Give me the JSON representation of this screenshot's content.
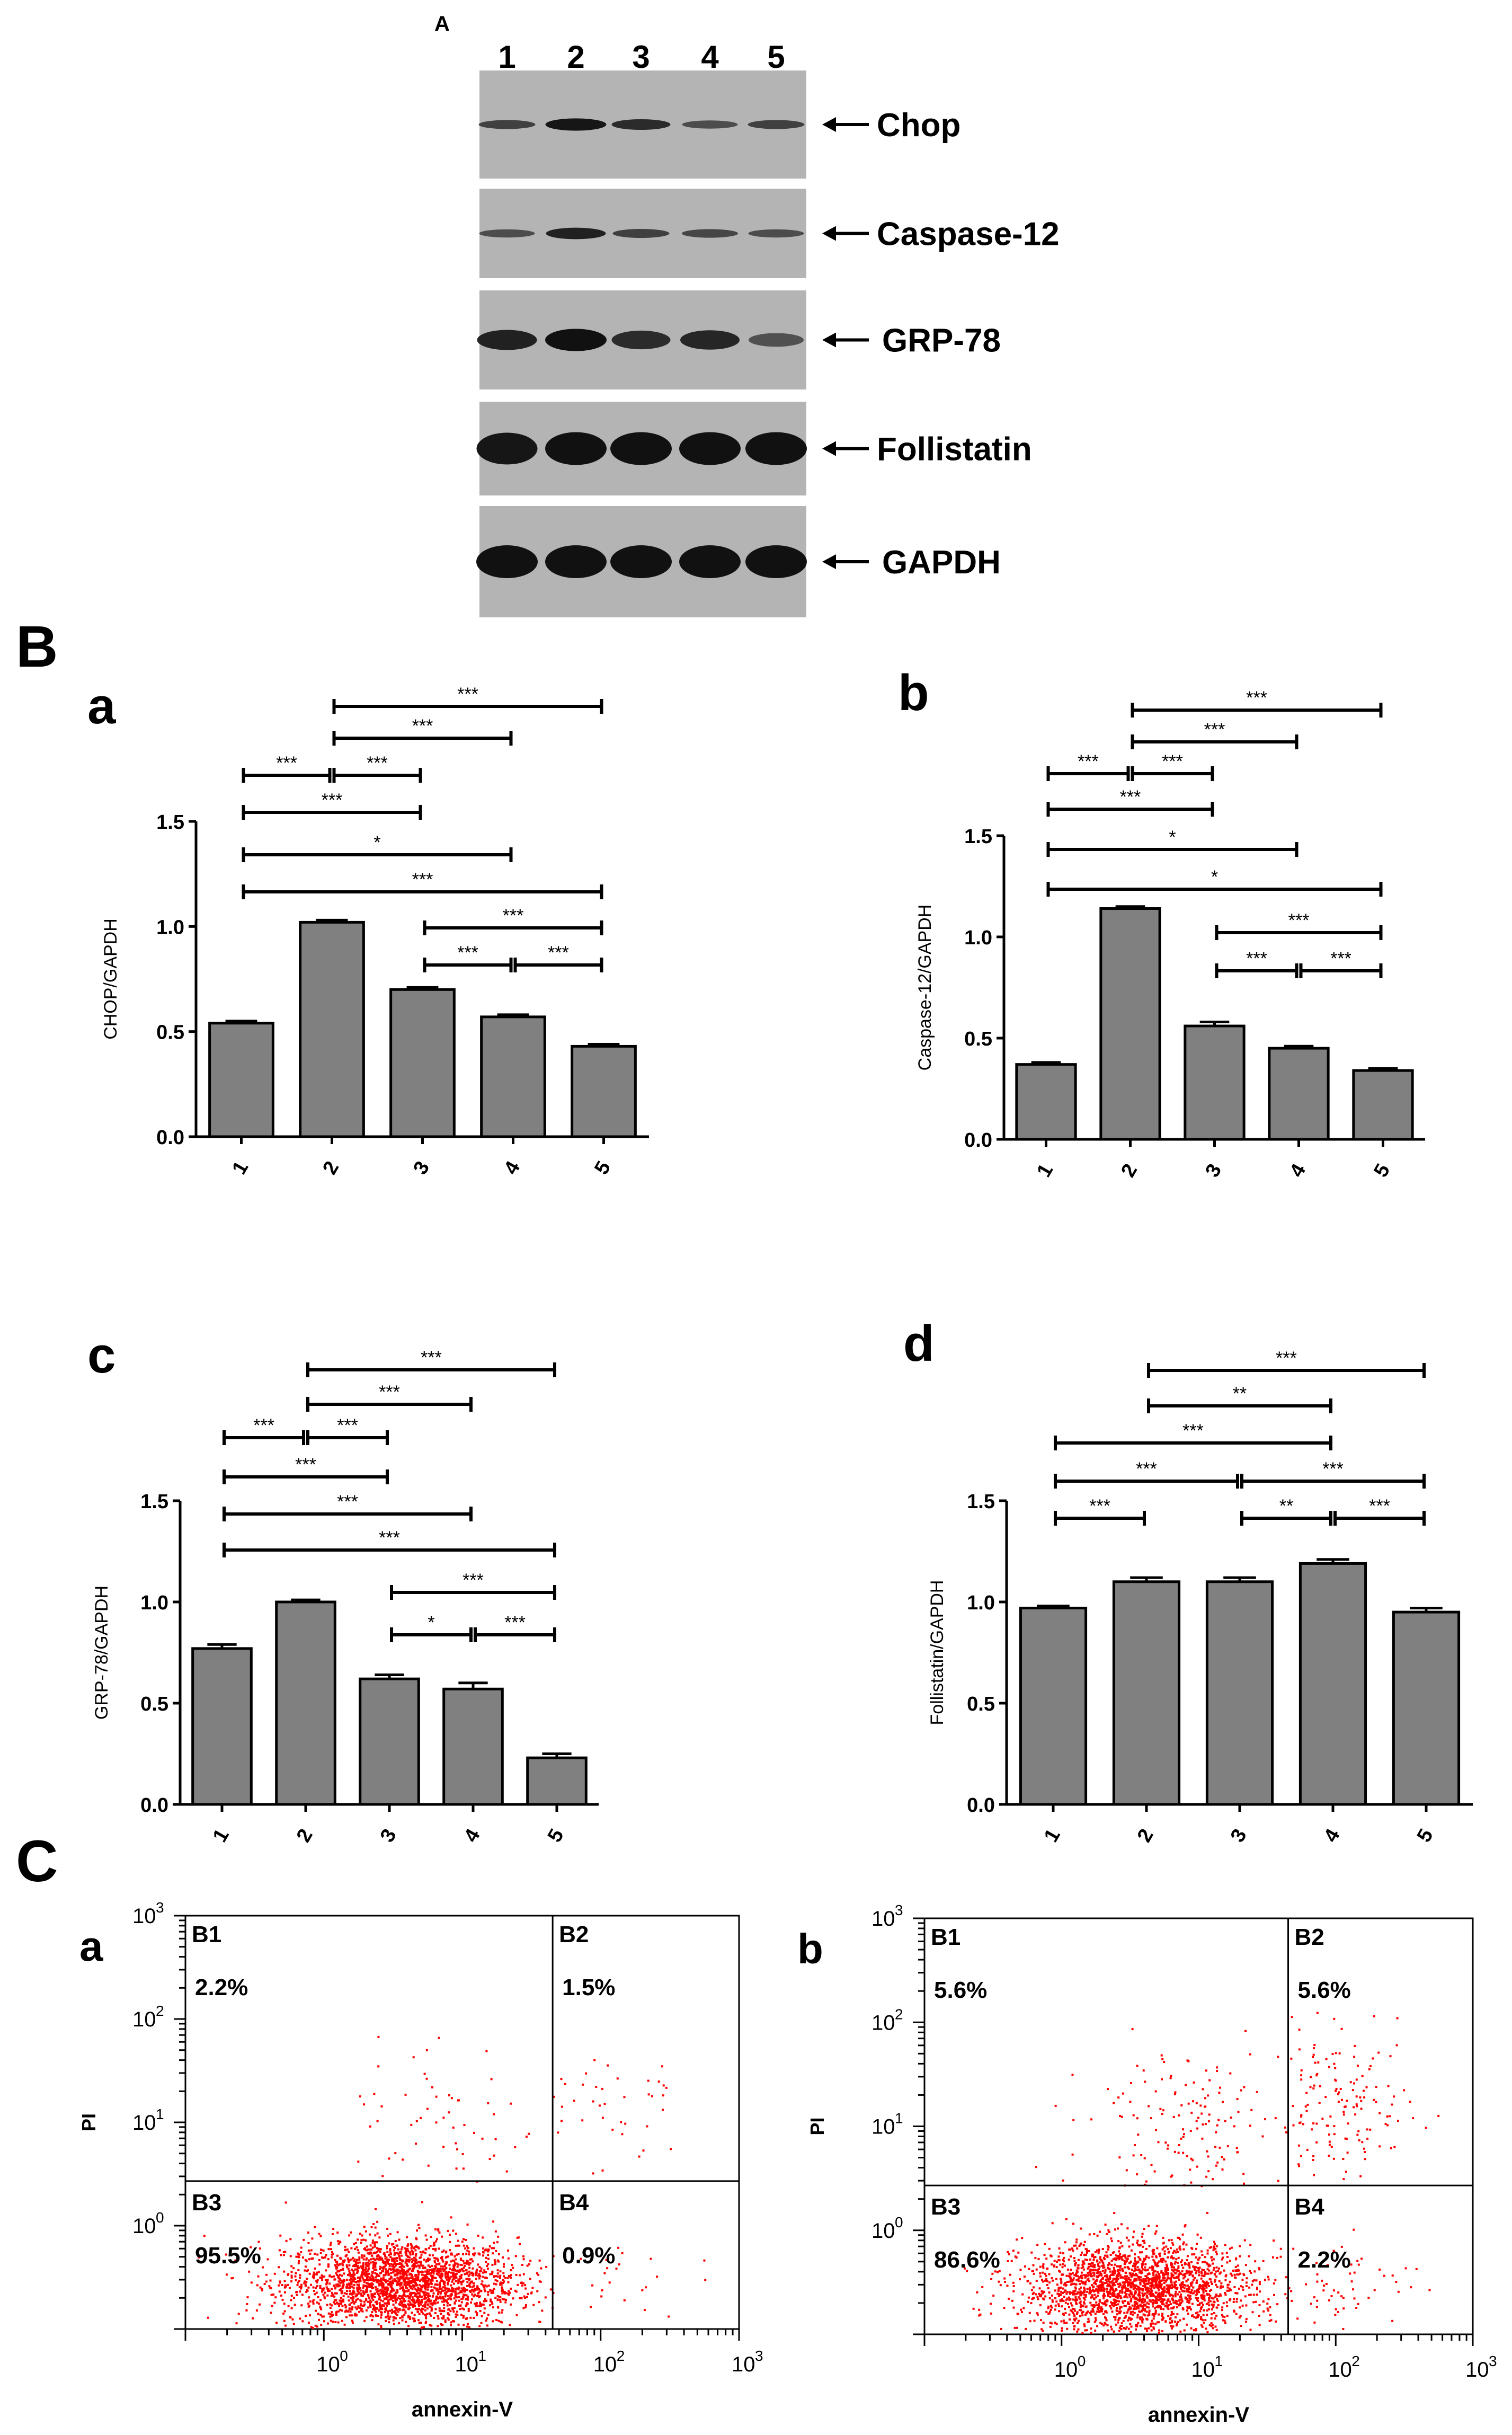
{
  "panel_labels": {
    "A": "A",
    "B": "B",
    "C": "C",
    "Ba": "a",
    "Bb": "b",
    "Bc": "c",
    "Bd": "d",
    "Ca": "a",
    "Cb": "b"
  },
  "blot": {
    "lanes": [
      "1",
      "2",
      "3",
      "4",
      "5"
    ],
    "rows": [
      {
        "label": "Chop",
        "intensity": [
          0.55,
          0.95,
          0.75,
          0.45,
          0.55
        ]
      },
      {
        "label": "Caspase-12",
        "intensity": [
          0.45,
          0.85,
          0.55,
          0.5,
          0.45
        ]
      },
      {
        "label": "GRP-78",
        "intensity": [
          0.85,
          1.0,
          0.75,
          0.8,
          0.4
        ]
      },
      {
        "label": "Follistatin",
        "intensity": [
          0.95,
          1.0,
          1.0,
          1.0,
          1.0
        ]
      },
      {
        "label": "GAPDH",
        "intensity": [
          1.0,
          1.0,
          1.0,
          1.0,
          1.0
        ]
      }
    ]
  },
  "colors": {
    "bar": "#808080",
    "dot": "#ff0000",
    "band": "#111111",
    "membrane": "#b4b4b4"
  },
  "chart_data": [
    {
      "id": "Ba",
      "type": "bar",
      "categories": [
        "1",
        "2",
        "3",
        "4",
        "5"
      ],
      "values": [
        0.54,
        1.02,
        0.7,
        0.57,
        0.43
      ],
      "errors": [
        0.01,
        0.01,
        0.01,
        0.01,
        0.01
      ],
      "ylabel": "CHOP/GAPDH",
      "ylim": [
        0,
        1.5
      ],
      "yticks": [
        "0.0",
        "0.5",
        "1.0",
        "1.5"
      ],
      "brackets": [
        {
          "from": 2,
          "to": 5,
          "label": "***"
        },
        {
          "from": 2,
          "to": 4,
          "label": "***"
        },
        {
          "from": 1,
          "to": 2,
          "label": "***"
        },
        {
          "from": 2,
          "to": 3,
          "label": "***"
        },
        {
          "from": 1,
          "to": 3,
          "label": "***"
        },
        {
          "from": 1,
          "to": 4,
          "label": "*"
        },
        {
          "from": 1,
          "to": 5,
          "label": "***"
        },
        {
          "from": 3,
          "to": 5,
          "label": "***"
        },
        {
          "from": 3,
          "to": 4,
          "label": "***"
        },
        {
          "from": 4,
          "to": 5,
          "label": "***"
        }
      ]
    },
    {
      "id": "Bb",
      "type": "bar",
      "categories": [
        "1",
        "2",
        "3",
        "4",
        "5"
      ],
      "values": [
        0.37,
        1.14,
        0.56,
        0.45,
        0.34
      ],
      "errors": [
        0.01,
        0.01,
        0.02,
        0.01,
        0.01
      ],
      "ylabel": "Caspase-12/GAPDH",
      "ylim": [
        0,
        1.5
      ],
      "yticks": [
        "0.0",
        "0.5",
        "1.0",
        "1.5"
      ],
      "brackets": [
        {
          "from": 2,
          "to": 5,
          "label": "***"
        },
        {
          "from": 2,
          "to": 4,
          "label": "***"
        },
        {
          "from": 1,
          "to": 2,
          "label": "***"
        },
        {
          "from": 2,
          "to": 3,
          "label": "***"
        },
        {
          "from": 1,
          "to": 3,
          "label": "***"
        },
        {
          "from": 1,
          "to": 4,
          "label": "*"
        },
        {
          "from": 1,
          "to": 5,
          "label": "*"
        },
        {
          "from": 3,
          "to": 5,
          "label": "***"
        },
        {
          "from": 3,
          "to": 4,
          "label": "***"
        },
        {
          "from": 4,
          "to": 5,
          "label": "***"
        }
      ]
    },
    {
      "id": "Bc",
      "type": "bar",
      "categories": [
        "1",
        "2",
        "3",
        "4",
        "5"
      ],
      "values": [
        0.77,
        1.0,
        0.62,
        0.57,
        0.23
      ],
      "errors": [
        0.02,
        0.01,
        0.02,
        0.03,
        0.02
      ],
      "ylabel": "GRP-78/GAPDH",
      "ylim": [
        0,
        1.5
      ],
      "yticks": [
        "0.0",
        "0.5",
        "1.0",
        "1.5"
      ],
      "brackets": [
        {
          "from": 2,
          "to": 5,
          "label": "***"
        },
        {
          "from": 2,
          "to": 4,
          "label": "***"
        },
        {
          "from": 1,
          "to": 2,
          "label": "***"
        },
        {
          "from": 2,
          "to": 3,
          "label": "***"
        },
        {
          "from": 1,
          "to": 3,
          "label": "***"
        },
        {
          "from": 1,
          "to": 4,
          "label": "***"
        },
        {
          "from": 1,
          "to": 5,
          "label": "***"
        },
        {
          "from": 3,
          "to": 5,
          "label": "***"
        },
        {
          "from": 3,
          "to": 4,
          "label": "*"
        },
        {
          "from": 4,
          "to": 5,
          "label": "***"
        }
      ]
    },
    {
      "id": "Bd",
      "type": "bar",
      "categories": [
        "1",
        "2",
        "3",
        "4",
        "5"
      ],
      "values": [
        0.97,
        1.1,
        1.1,
        1.19,
        0.95
      ],
      "errors": [
        0.01,
        0.02,
        0.02,
        0.02,
        0.02
      ],
      "ylabel": "Follistatin/GAPDH",
      "ylim": [
        0,
        1.5
      ],
      "yticks": [
        "0.0",
        "0.5",
        "1.0",
        "1.5"
      ],
      "brackets": [
        {
          "from": 2,
          "to": 5,
          "label": "***"
        },
        {
          "from": 2,
          "to": 4,
          "label": "**"
        },
        {
          "from": 1,
          "to": 4,
          "label": "***"
        },
        {
          "from": 1,
          "to": 3,
          "label": "***"
        },
        {
          "from": 3,
          "to": 5,
          "label": "***"
        },
        {
          "from": 1,
          "to": 2,
          "label": "***"
        },
        {
          "from": 3,
          "to": 4,
          "label": "**"
        },
        {
          "from": 4,
          "to": 5,
          "label": "***"
        }
      ]
    },
    {
      "id": "Ca",
      "type": "scatter",
      "xlabel": "annexin-V",
      "ylabel": "PI",
      "log_scale": true,
      "xlim": [
        0.1,
        1000
      ],
      "ylim": [
        0.1,
        1000
      ],
      "quadrants": [
        {
          "name": "B1",
          "percent": "2.2%"
        },
        {
          "name": "B2",
          "percent": "1.5%"
        },
        {
          "name": "B3",
          "percent": "95.5%"
        },
        {
          "name": "B4",
          "percent": "0.9%"
        }
      ],
      "gate": {
        "x": 45,
        "y": 2.7
      }
    },
    {
      "id": "Cb",
      "type": "scatter",
      "xlabel": "annexin-V",
      "ylabel": "PI",
      "log_scale": true,
      "xlim": [
        0.1,
        1000
      ],
      "ylim": [
        0.1,
        1000
      ],
      "quadrants": [
        {
          "name": "B1",
          "percent": "5.6%"
        },
        {
          "name": "B2",
          "percent": "5.6%"
        },
        {
          "name": "B3",
          "percent": "86.6%"
        },
        {
          "name": "B4",
          "percent": "2.2%"
        }
      ],
      "gate": {
        "x": 45,
        "y": 2.7
      }
    }
  ]
}
